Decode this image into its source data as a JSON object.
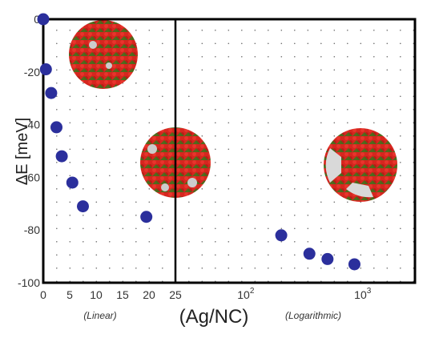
{
  "chart_data": {
    "type": "scatter",
    "ylabel": "ΔE [meV]",
    "xlabel": "(Ag/NC)",
    "ylim": [
      -100,
      0
    ],
    "y_ticks": [
      "0",
      "-20",
      "-40",
      "-60",
      "-80",
      "-100"
    ],
    "panels": [
      {
        "scale": "linear",
        "annotation": "(Linear)",
        "xlim": [
          0,
          25
        ],
        "x_ticks": [
          "0",
          "5",
          "10",
          "15",
          "20",
          "25"
        ],
        "x": [
          0,
          0.5,
          1.5,
          2.5,
          3.5,
          5.5,
          7.5,
          19.5
        ],
        "y": [
          0,
          -19,
          -28,
          -41,
          -52,
          -62,
          -71,
          -75
        ]
      },
      {
        "scale": "log",
        "annotation": "(Logarithmic)",
        "xlim": [
          25,
          2800
        ],
        "x_ticks": [
          {
            "base": "10",
            "exp": "2",
            "value": 100
          },
          {
            "base": "10",
            "exp": "3",
            "value": 1000
          }
        ],
        "x": [
          201,
          350,
          500,
          850
        ],
        "y": [
          -82,
          -89,
          -91,
          -93
        ]
      }
    ],
    "grid": "dotted",
    "marker_color": "#2b2f9c"
  }
}
